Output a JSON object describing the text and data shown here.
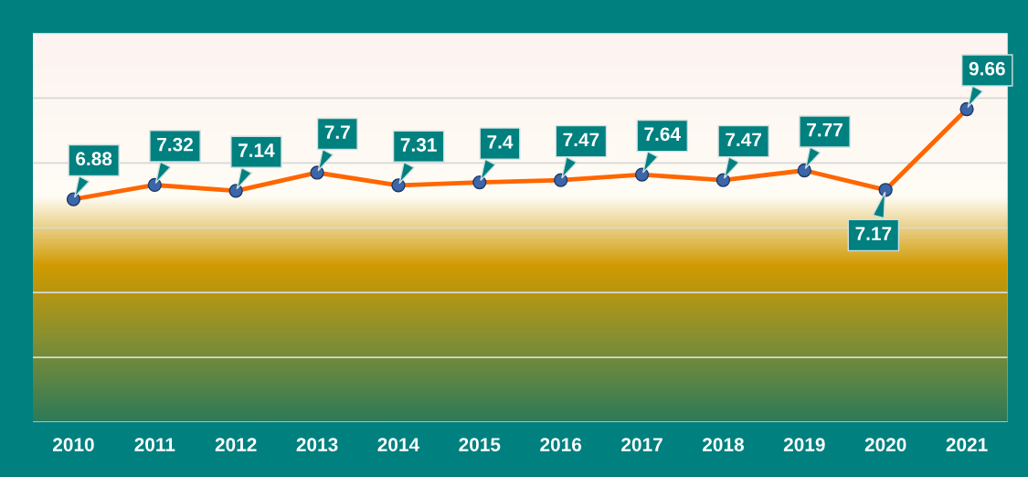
{
  "chart_data": {
    "type": "line",
    "categories": [
      "2010",
      "2011",
      "2012",
      "2013",
      "2014",
      "2015",
      "2016",
      "2017",
      "2018",
      "2019",
      "2020",
      "2021"
    ],
    "series": [
      {
        "color": "#ff6600",
        "values": [
          6.88,
          7.32,
          7.14,
          7.7,
          7.31,
          7.4,
          7.47,
          7.64,
          7.47,
          7.77,
          7.17,
          9.66
        ]
      }
    ],
    "data_labels": true,
    "marker": "circle",
    "line_style": "solid",
    "grid": "y",
    "legend": false,
    "tick_labels": "x",
    "ylim": [
      0,
      12
    ],
    "yticks": [
      {
        "value": 0,
        "label": null
      },
      {
        "value": 2,
        "label": null
      },
      {
        "value": 4,
        "label": null
      },
      {
        "value": 6,
        "label": null
      },
      {
        "value": 8,
        "label": null
      },
      {
        "value": 10,
        "label": null
      },
      {
        "value": 12,
        "label": null
      }
    ]
  }
}
